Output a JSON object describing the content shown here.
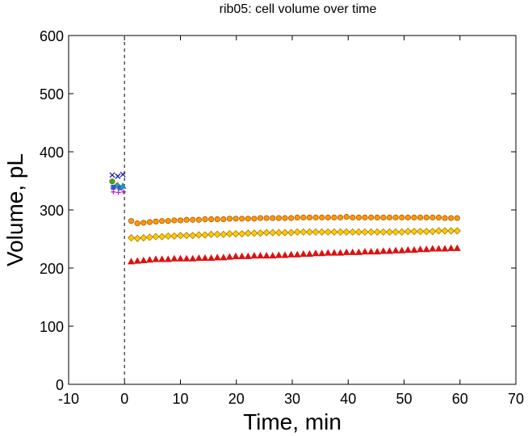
{
  "chart_data": {
    "type": "scatter",
    "title": "rib05: cell volume over time",
    "xlabel": "Time, min",
    "ylabel": "Volume, pL",
    "xlim": [
      -10,
      70
    ],
    "ylim": [
      0,
      600
    ],
    "xticks": [
      -10,
      0,
      10,
      20,
      30,
      40,
      50,
      60,
      70
    ],
    "yticks": [
      0,
      100,
      200,
      300,
      400,
      500,
      600
    ],
    "vline": {
      "x": 0,
      "style": "dashed"
    },
    "series": [
      {
        "name": "navy x",
        "marker": "x",
        "color": "#1a1aa6",
        "x": [
          -2.2,
          -1.2,
          -0.3
        ],
        "y": [
          360,
          358,
          361
        ]
      },
      {
        "name": "green circle",
        "marker": "circle",
        "color": "#22bb22",
        "x": [
          -2.2
        ],
        "y": [
          349
        ]
      },
      {
        "name": "cyan diamond",
        "marker": "diamond",
        "color": "#22aacc",
        "x": [
          -1.3
        ],
        "y": [
          342
        ]
      },
      {
        "name": "blue square",
        "marker": "square",
        "color": "#3355dd",
        "x": [
          -2.0,
          -0.8
        ],
        "y": [
          339,
          338
        ]
      },
      {
        "name": "teal triangle",
        "marker": "triangle",
        "color": "#2299aa",
        "x": [
          -0.3
        ],
        "y": [
          341
        ]
      },
      {
        "name": "magenta plus",
        "marker": "plus",
        "color": "#cc22cc",
        "x": [
          -2.0,
          -1.1,
          -0.2
        ],
        "y": [
          331,
          330,
          331
        ]
      },
      {
        "name": "orange circles",
        "marker": "circle",
        "color": "#ff9900",
        "x": [
          1.2,
          2.3,
          3.4,
          4.5,
          5.6,
          6.7,
          7.8,
          8.9,
          10.0,
          11.1,
          12.2,
          13.3,
          14.4,
          15.5,
          16.6,
          17.7,
          18.8,
          19.9,
          21.0,
          22.1,
          23.2,
          24.3,
          25.4,
          26.5,
          27.6,
          28.7,
          29.8,
          30.9,
          32.0,
          33.1,
          34.2,
          35.3,
          36.4,
          37.5,
          38.6,
          39.7,
          40.8,
          41.9,
          43.0,
          44.1,
          45.2,
          46.3,
          47.4,
          48.5,
          49.6,
          50.7,
          51.8,
          52.9,
          54.0,
          55.1,
          56.2,
          57.3,
          58.4,
          59.5
        ],
        "y": [
          281,
          277,
          278,
          279,
          280,
          281,
          281,
          282,
          282,
          283,
          283,
          283,
          284,
          284,
          284,
          284,
          285,
          285,
          285,
          285,
          285,
          286,
          286,
          286,
          286,
          286,
          286,
          287,
          287,
          287,
          287,
          287,
          287,
          287,
          287,
          288,
          287,
          287,
          287,
          287,
          287,
          287,
          287,
          287,
          287,
          287,
          287,
          287,
          287,
          287,
          287,
          286,
          286,
          286
        ]
      },
      {
        "name": "gold diamonds",
        "marker": "diamond",
        "color": "#ffcc00",
        "x": [
          1.2,
          2.3,
          3.4,
          4.5,
          5.6,
          6.7,
          7.8,
          8.9,
          10.0,
          11.1,
          12.2,
          13.3,
          14.4,
          15.5,
          16.6,
          17.7,
          18.8,
          19.9,
          21.0,
          22.1,
          23.2,
          24.3,
          25.4,
          26.5,
          27.6,
          28.7,
          29.8,
          30.9,
          32.0,
          33.1,
          34.2,
          35.3,
          36.4,
          37.5,
          38.6,
          39.7,
          40.8,
          41.9,
          43.0,
          44.1,
          45.2,
          46.3,
          47.4,
          48.5,
          49.6,
          50.7,
          51.8,
          52.9,
          54.0,
          55.1,
          56.2,
          57.3,
          58.4,
          59.5
        ],
        "y": [
          252,
          251,
          252,
          253,
          254,
          254,
          255,
          255,
          256,
          256,
          256,
          257,
          257,
          258,
          258,
          258,
          259,
          259,
          259,
          260,
          260,
          260,
          261,
          261,
          261,
          261,
          261,
          262,
          262,
          262,
          262,
          262,
          262,
          262,
          262,
          262,
          262,
          262,
          262,
          262,
          262,
          262,
          262,
          262,
          262,
          263,
          263,
          263,
          263,
          263,
          264,
          264,
          264,
          264
        ]
      },
      {
        "name": "red triangles",
        "marker": "triangle",
        "color": "#dd1111",
        "x": [
          1.2,
          2.3,
          3.4,
          4.5,
          5.6,
          6.7,
          7.8,
          8.9,
          10.0,
          11.1,
          12.2,
          13.3,
          14.4,
          15.5,
          16.6,
          17.7,
          18.8,
          19.9,
          21.0,
          22.1,
          23.2,
          24.3,
          25.4,
          26.5,
          27.6,
          28.7,
          29.8,
          30.9,
          32.0,
          33.1,
          34.2,
          35.3,
          36.4,
          37.5,
          38.6,
          39.7,
          40.8,
          41.9,
          43.0,
          44.1,
          45.2,
          46.3,
          47.4,
          48.5,
          49.6,
          50.7,
          51.8,
          52.9,
          54.0,
          55.1,
          56.2,
          57.3,
          58.4,
          59.5
        ],
        "y": [
          211,
          212,
          213,
          214,
          215,
          215,
          215,
          216,
          216,
          216,
          216,
          217,
          217,
          217,
          218,
          218,
          219,
          220,
          220,
          220,
          221,
          221,
          221,
          221,
          222,
          222,
          223,
          223,
          224,
          224,
          225,
          225,
          226,
          226,
          226,
          227,
          227,
          227,
          228,
          228,
          228,
          229,
          229,
          230,
          230,
          231,
          231,
          232,
          232,
          233,
          233,
          233,
          234,
          234
        ]
      }
    ]
  }
}
